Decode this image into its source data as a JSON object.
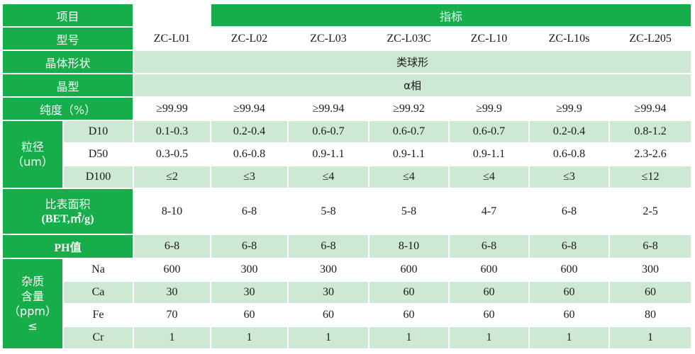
{
  "header": {
    "item_label": "项目",
    "spec_label": "指标"
  },
  "models": {
    "label": "型号",
    "values": [
      "ZC-L01",
      "ZC-L02",
      "ZC-L03",
      "ZC-L03C",
      "ZC-L10",
      "ZC-L10s",
      "ZC-L205"
    ]
  },
  "crystal_shape": {
    "label": "晶体形状",
    "value": "类球形"
  },
  "crystal_phase": {
    "label": "晶型",
    "value": "α相"
  },
  "purity": {
    "label": "纯度（%）",
    "values": [
      "≥99.99",
      "≥99.94",
      "≥99.94",
      "≥99.92",
      "≥99.9",
      "≥99.9",
      "≥99.94"
    ]
  },
  "particle_size": {
    "label_line1": "粒径",
    "label_line2": "（um）",
    "rows": [
      {
        "name": "D10",
        "values": [
          "0.1-0.3",
          "0.2-0.4",
          "0.6-0.7",
          "0.6-0.7",
          "0.6-0.7",
          "0.2-0.4",
          "0.8-1.2"
        ]
      },
      {
        "name": "D50",
        "values": [
          "0.3-0.5",
          "0.6-0.8",
          "0.9-1.1",
          "0.9-1.1",
          "0.9-1.1",
          "0.6-0.8",
          "2.3-2.6"
        ]
      },
      {
        "name": "D100",
        "values": [
          "≤2",
          "≤3",
          "≤4",
          "≤4",
          "≤4",
          "≤3",
          "≤12"
        ]
      }
    ]
  },
  "surface_area": {
    "label_line1": "比表面积",
    "label_line2": "(BET,㎡/g)",
    "values": [
      "8-10",
      "6-8",
      "5-8",
      "5-8",
      "4-7",
      "6-8",
      "2-5"
    ]
  },
  "ph": {
    "label": "PH值",
    "values": [
      "6-8",
      "6-8",
      "6-8",
      "8-10",
      "6-8",
      "6-8",
      "6-8"
    ]
  },
  "impurity": {
    "label_line1": "杂质",
    "label_line2": "含量",
    "label_line3": "（ppm）",
    "label_line4": "≤",
    "rows": [
      {
        "name": "Na",
        "values": [
          "600",
          "300",
          "300",
          "600",
          "600",
          "600",
          "300"
        ]
      },
      {
        "name": "Ca",
        "values": [
          "30",
          "30",
          "30",
          "60",
          "60",
          "60",
          "60"
        ]
      },
      {
        "name": "Fe",
        "values": [
          "70",
          "60",
          "60",
          "60",
          "60",
          "60",
          "80"
        ]
      },
      {
        "name": "Cr",
        "values": [
          "1",
          "1",
          "1",
          "1",
          "1",
          "1",
          "1"
        ]
      }
    ]
  },
  "colors": {
    "header_green": "#17ad4a",
    "row_light_green": "#cde9d3",
    "row_white": "#ffffff"
  }
}
